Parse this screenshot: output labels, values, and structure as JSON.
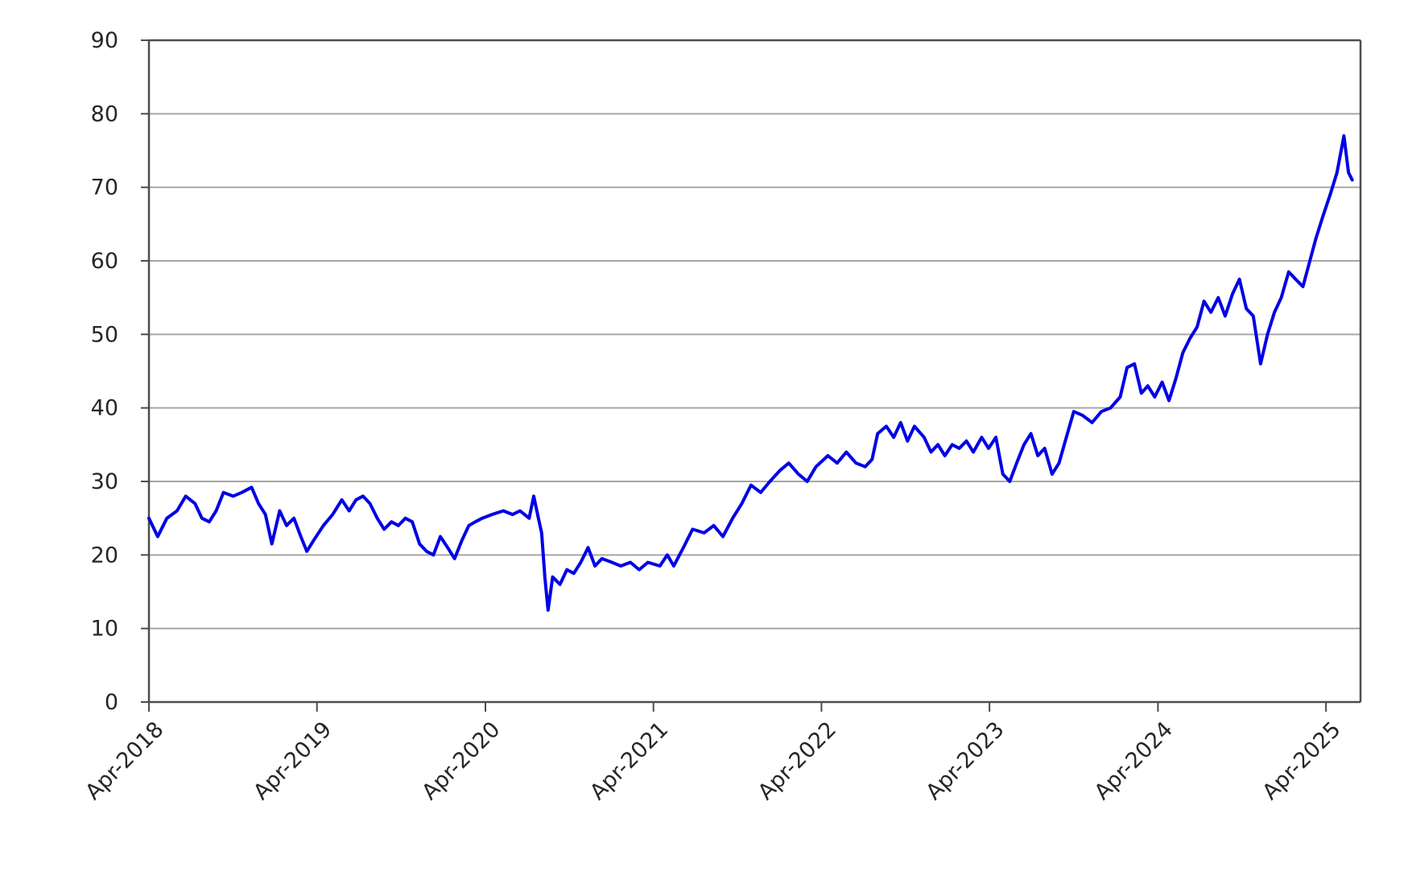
{
  "chart_data": {
    "type": "line",
    "title": "",
    "xlabel": "",
    "ylabel": "",
    "ylim": [
      0,
      90
    ],
    "yticks": [
      0,
      10,
      20,
      30,
      40,
      50,
      60,
      70,
      80,
      90
    ],
    "xlim": [
      "2018-04-01",
      "2025-06-15"
    ],
    "xticks": [
      "2018-04-01",
      "2019-04-01",
      "2020-04-01",
      "2021-04-01",
      "2022-04-01",
      "2023-04-01",
      "2024-04-01",
      "2025-04-01"
    ],
    "xtick_labels": [
      "Apr-2018",
      "Apr-2019",
      "Apr-2020",
      "Apr-2021",
      "Apr-2022",
      "Apr-2023",
      "Apr-2024",
      "Apr-2025"
    ],
    "grid": true,
    "legend": "none",
    "series": [
      {
        "color": "#0000e6",
        "points": [
          [
            "2018-04-01",
            25
          ],
          [
            "2018-04-20",
            22.5
          ],
          [
            "2018-05-10",
            25
          ],
          [
            "2018-06-01",
            26
          ],
          [
            "2018-06-20",
            28
          ],
          [
            "2018-07-10",
            27
          ],
          [
            "2018-07-25",
            25
          ],
          [
            "2018-08-10",
            24.5
          ],
          [
            "2018-08-25",
            26
          ],
          [
            "2018-09-10",
            28.5
          ],
          [
            "2018-10-01",
            28
          ],
          [
            "2018-10-20",
            28.5
          ],
          [
            "2018-11-10",
            29.2
          ],
          [
            "2018-11-25",
            27
          ],
          [
            "2018-12-10",
            25.5
          ],
          [
            "2018-12-24",
            21.5
          ],
          [
            "2019-01-10",
            26
          ],
          [
            "2019-01-25",
            24
          ],
          [
            "2019-02-10",
            25
          ],
          [
            "2019-02-25",
            22.5
          ],
          [
            "2019-03-10",
            20.5
          ],
          [
            "2019-03-25",
            22
          ],
          [
            "2019-04-15",
            24
          ],
          [
            "2019-05-05",
            25.5
          ],
          [
            "2019-05-25",
            27.5
          ],
          [
            "2019-06-10",
            26
          ],
          [
            "2019-06-25",
            27.5
          ],
          [
            "2019-07-10",
            28
          ],
          [
            "2019-07-25",
            27
          ],
          [
            "2019-08-10",
            25
          ],
          [
            "2019-08-25",
            23.5
          ],
          [
            "2019-09-10",
            24.5
          ],
          [
            "2019-09-25",
            24
          ],
          [
            "2019-10-10",
            25
          ],
          [
            "2019-10-25",
            24.5
          ],
          [
            "2019-11-10",
            21.5
          ],
          [
            "2019-11-25",
            20.5
          ],
          [
            "2019-12-10",
            20
          ],
          [
            "2019-12-25",
            22.5
          ],
          [
            "2020-01-10",
            21
          ],
          [
            "2020-01-25",
            19.5
          ],
          [
            "2020-02-10",
            22
          ],
          [
            "2020-02-25",
            24
          ],
          [
            "2020-03-10",
            24.5
          ],
          [
            "2020-03-25",
            25
          ],
          [
            "2020-04-15",
            25.5
          ],
          [
            "2020-05-10",
            26
          ],
          [
            "2020-05-30",
            25.5
          ],
          [
            "2020-06-15",
            26
          ],
          [
            "2020-07-05",
            25
          ],
          [
            "2020-07-15",
            28
          ],
          [
            "2020-07-25",
            25
          ],
          [
            "2020-08-01",
            23
          ],
          [
            "2020-08-08",
            17
          ],
          [
            "2020-08-15",
            12.5
          ],
          [
            "2020-08-25",
            17
          ],
          [
            "2020-09-10",
            16
          ],
          [
            "2020-09-25",
            18
          ],
          [
            "2020-10-10",
            17.5
          ],
          [
            "2020-10-25",
            19
          ],
          [
            "2020-11-10",
            21
          ],
          [
            "2020-11-25",
            18.5
          ],
          [
            "2020-12-10",
            19.5
          ],
          [
            "2021-01-01",
            19
          ],
          [
            "2021-01-20",
            18.5
          ],
          [
            "2021-02-10",
            19
          ],
          [
            "2021-03-01",
            18
          ],
          [
            "2021-03-20",
            19
          ],
          [
            "2021-04-15",
            18.5
          ],
          [
            "2021-05-01",
            20
          ],
          [
            "2021-05-15",
            18.5
          ],
          [
            "2021-06-05",
            21
          ],
          [
            "2021-06-25",
            23.5
          ],
          [
            "2021-07-20",
            23
          ],
          [
            "2021-08-10",
            24
          ],
          [
            "2021-08-30",
            22.5
          ],
          [
            "2021-09-20",
            25
          ],
          [
            "2021-10-10",
            27
          ],
          [
            "2021-10-30",
            29.5
          ],
          [
            "2021-11-20",
            28.5
          ],
          [
            "2021-12-10",
            30
          ],
          [
            "2022-01-01",
            31.5
          ],
          [
            "2022-01-20",
            32.5
          ],
          [
            "2022-02-10",
            31
          ],
          [
            "2022-03-01",
            30
          ],
          [
            "2022-03-20",
            32
          ],
          [
            "2022-04-15",
            33.5
          ],
          [
            "2022-05-05",
            32.5
          ],
          [
            "2022-05-25",
            34
          ],
          [
            "2022-06-15",
            32.5
          ],
          [
            "2022-07-05",
            32
          ],
          [
            "2022-07-20",
            33
          ],
          [
            "2022-08-01",
            36.5
          ],
          [
            "2022-08-20",
            37.5
          ],
          [
            "2022-09-05",
            36
          ],
          [
            "2022-09-20",
            38
          ],
          [
            "2022-10-05",
            35.5
          ],
          [
            "2022-10-20",
            37.5
          ],
          [
            "2022-11-10",
            36
          ],
          [
            "2022-11-25",
            34
          ],
          [
            "2022-12-10",
            35
          ],
          [
            "2022-12-25",
            33.5
          ],
          [
            "2023-01-10",
            35
          ],
          [
            "2023-01-25",
            34.5
          ],
          [
            "2023-02-10",
            35.5
          ],
          [
            "2023-02-25",
            34
          ],
          [
            "2023-03-15",
            36
          ],
          [
            "2023-03-30",
            34.5
          ],
          [
            "2023-04-15",
            36
          ],
          [
            "2023-04-30",
            31
          ],
          [
            "2023-05-15",
            30
          ],
          [
            "2023-05-30",
            32.5
          ],
          [
            "2023-06-15",
            35
          ],
          [
            "2023-06-30",
            36.5
          ],
          [
            "2023-07-15",
            33.5
          ],
          [
            "2023-07-30",
            34.5
          ],
          [
            "2023-08-15",
            31
          ],
          [
            "2023-08-30",
            32.5
          ],
          [
            "2023-09-15",
            36
          ],
          [
            "2023-10-01",
            39.5
          ],
          [
            "2023-10-20",
            39
          ],
          [
            "2023-11-10",
            38
          ],
          [
            "2023-11-30",
            39.5
          ],
          [
            "2023-12-20",
            40
          ],
          [
            "2024-01-10",
            41.5
          ],
          [
            "2024-01-25",
            45.5
          ],
          [
            "2024-02-10",
            46
          ],
          [
            "2024-02-25",
            42
          ],
          [
            "2024-03-10",
            43
          ],
          [
            "2024-03-25",
            41.5
          ],
          [
            "2024-04-10",
            43.5
          ],
          [
            "2024-04-25",
            41
          ],
          [
            "2024-05-10",
            44
          ],
          [
            "2024-05-25",
            47.5
          ],
          [
            "2024-06-10",
            49.5
          ],
          [
            "2024-06-25",
            51
          ],
          [
            "2024-07-10",
            54.5
          ],
          [
            "2024-07-25",
            53
          ],
          [
            "2024-08-10",
            55
          ],
          [
            "2024-08-25",
            52.5
          ],
          [
            "2024-09-10",
            55.5
          ],
          [
            "2024-09-25",
            57.5
          ],
          [
            "2024-10-10",
            53.5
          ],
          [
            "2024-10-25",
            52.5
          ],
          [
            "2024-11-10",
            46
          ],
          [
            "2024-11-25",
            50
          ],
          [
            "2024-12-10",
            53
          ],
          [
            "2024-12-25",
            55
          ],
          [
            "2025-01-10",
            58.5
          ],
          [
            "2025-01-25",
            57.5
          ],
          [
            "2025-02-10",
            56.5
          ],
          [
            "2025-02-25",
            60
          ],
          [
            "2025-03-10",
            63
          ],
          [
            "2025-03-25",
            66
          ],
          [
            "2025-04-10",
            69
          ],
          [
            "2025-04-25",
            72
          ],
          [
            "2025-05-10",
            77
          ],
          [
            "2025-05-20",
            72
          ],
          [
            "2025-05-28",
            71
          ]
        ]
      }
    ]
  }
}
